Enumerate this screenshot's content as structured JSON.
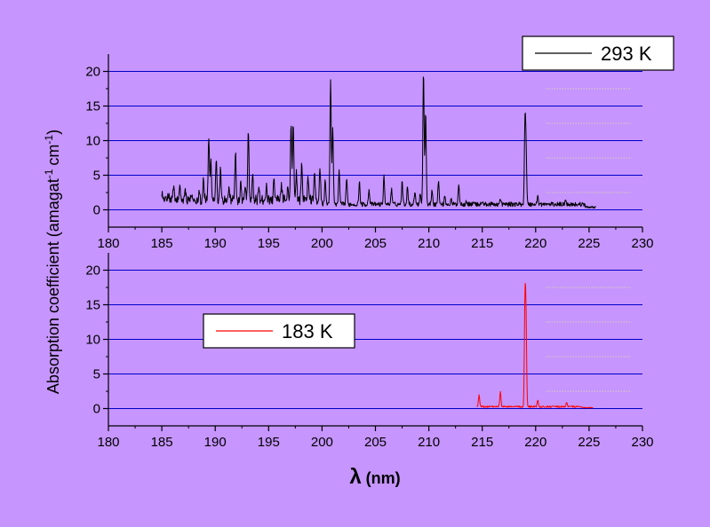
{
  "colors": {
    "background": "#c695fe",
    "gridline": "#0000c8",
    "dotted_line": "#e6e696",
    "axis": "#000000",
    "series_293": "#000000",
    "series_183": "#ff0000"
  },
  "y_axis_label": {
    "prefix": "Absorption coefficient (amagat",
    "sup1": "-1",
    "middle": "cm",
    "sup2": "-1",
    "suffix": ")"
  },
  "x_axis_label": {
    "symbol": "λ",
    "rest": " (nm)"
  },
  "chart_data": [
    {
      "type": "line",
      "legend_position": "top-right",
      "xlim": [
        180,
        230
      ],
      "ylim": [
        -2.5,
        22.5
      ],
      "x_ticks": [
        180,
        185,
        190,
        195,
        200,
        205,
        210,
        215,
        220,
        225,
        230
      ],
      "y_ticks": [
        0,
        5,
        10,
        15,
        20
      ],
      "grid": true,
      "series": [
        {
          "name": "293 K",
          "color": "#000000",
          "baseline": 0.8,
          "x_start": 185.0,
          "x_end": 225.6,
          "peaks": [
            [
              185.0,
              2.2
            ],
            [
              185.6,
              1.8
            ],
            [
              186.1,
              2.8
            ],
            [
              186.7,
              2.5
            ],
            [
              187.2,
              2.2
            ],
            [
              187.8,
              1.6
            ],
            [
              188.5,
              2.5
            ],
            [
              188.9,
              3.8
            ],
            [
              189.4,
              10.0
            ],
            [
              189.6,
              6.5
            ],
            [
              190.1,
              7.0
            ],
            [
              190.5,
              5.5
            ],
            [
              191.3,
              2.5
            ],
            [
              191.9,
              7.5
            ],
            [
              192.4,
              3.5
            ],
            [
              192.8,
              3.0
            ],
            [
              193.1,
              11.3
            ],
            [
              193.5,
              4.5
            ],
            [
              194.1,
              2.5
            ],
            [
              194.8,
              3.0
            ],
            [
              195.5,
              3.5
            ],
            [
              196.2,
              3.0
            ],
            [
              196.8,
              2.5
            ],
            [
              197.1,
              11.8
            ],
            [
              197.3,
              12.0
            ],
            [
              197.6,
              5.0
            ],
            [
              198.1,
              6.3
            ],
            [
              198.7,
              4.0
            ],
            [
              199.3,
              5.0
            ],
            [
              199.8,
              5.2
            ],
            [
              200.3,
              4.5
            ],
            [
              200.8,
              19.1
            ],
            [
              201.0,
              12.0
            ],
            [
              201.6,
              5.5
            ],
            [
              202.3,
              4.5
            ],
            [
              203.5,
              4.0
            ],
            [
              204.4,
              3.0
            ],
            [
              205.8,
              4.8
            ],
            [
              206.5,
              3.0
            ],
            [
              207.5,
              4.0
            ],
            [
              208.0,
              3.5
            ],
            [
              208.7,
              2.8
            ],
            [
              209.2,
              2.5
            ],
            [
              209.5,
              20.2
            ],
            [
              209.7,
              14.3
            ],
            [
              210.3,
              3.0
            ],
            [
              210.9,
              4.3
            ],
            [
              211.5,
              2.0
            ],
            [
              212.1,
              1.5
            ],
            [
              212.8,
              3.8
            ],
            [
              213.5,
              1.4
            ],
            [
              214.2,
              1.2
            ],
            [
              215.0,
              1.2
            ],
            [
              216.2,
              0.8
            ],
            [
              216.7,
              1.5
            ],
            [
              217.8,
              0.8
            ],
            [
              219.0,
              12.4
            ],
            [
              219.1,
              8.5
            ],
            [
              220.2,
              2.0
            ],
            [
              222.8,
              1.8
            ],
            [
              224.0,
              0.8
            ]
          ]
        }
      ]
    },
    {
      "type": "line",
      "legend_position": "middle-left",
      "xlim": [
        180,
        230
      ],
      "ylim": [
        -2.5,
        22.5
      ],
      "x_ticks": [
        180,
        185,
        190,
        195,
        200,
        205,
        210,
        215,
        220,
        225,
        230
      ],
      "y_ticks": [
        0,
        5,
        10,
        15,
        20
      ],
      "grid": true,
      "series": [
        {
          "name": "183 K",
          "color": "#ff0000",
          "baseline": 0.3,
          "x_start": 214.5,
          "x_end": 225.4,
          "peaks": [
            [
              214.7,
              2.0
            ],
            [
              216.7,
              2.4
            ],
            [
              219.0,
              14.9
            ],
            [
              219.1,
              11.8
            ],
            [
              220.2,
              1.3
            ],
            [
              222.9,
              1.0
            ]
          ]
        }
      ]
    }
  ]
}
